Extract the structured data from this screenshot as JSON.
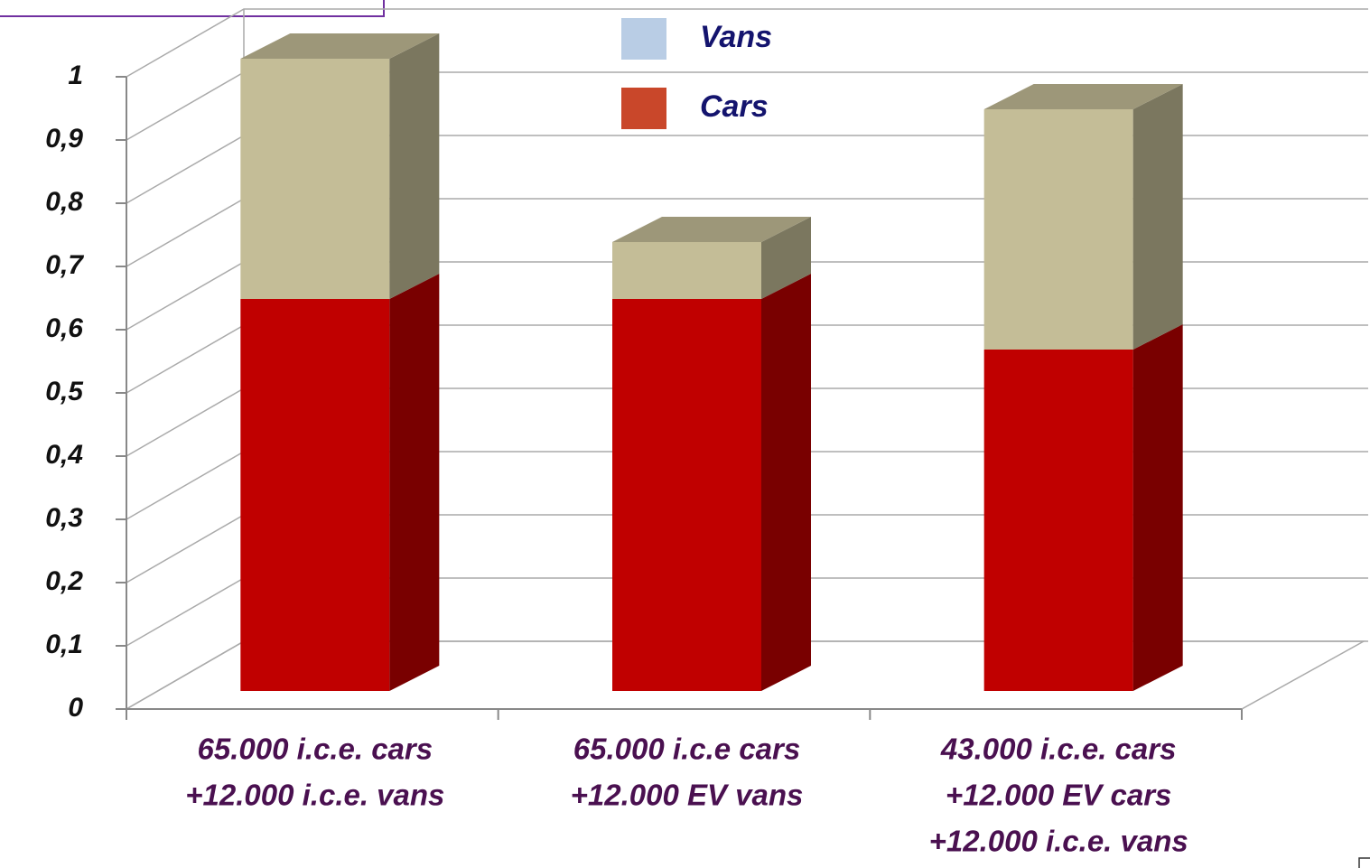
{
  "chart_data": {
    "type": "bar3d_stacked",
    "categories": [
      [
        "65.000 i.c.e. cars",
        "+12.000 i.c.e. vans"
      ],
      [
        "65.000 i.c.e cars",
        "+12.000 EV vans"
      ],
      [
        "43.000 i.c.e. cars",
        "+12.000 EV cars",
        "+12.000 i.c.e. vans"
      ]
    ],
    "series": [
      {
        "name": "Cars",
        "color": "#c00000",
        "legend_color": "#c9472a",
        "values": [
          0.62,
          0.62,
          0.54
        ]
      },
      {
        "name": "Vans",
        "color": "#c4bd97",
        "legend_color": "#b9cde5",
        "values": [
          0.38,
          0.09,
          0.38
        ]
      }
    ],
    "ylim": [
      0,
      1
    ],
    "yticks": [
      0,
      {
        "value": 0.1,
        "label": "0,1"
      },
      {
        "value": 0.2,
        "label": "0,2"
      },
      {
        "value": 0.3,
        "label": "0,3"
      },
      {
        "value": 0.4,
        "label": "0,4"
      },
      {
        "value": 0.5,
        "label": "0,5"
      },
      {
        "value": 0.6,
        "label": "0,6"
      },
      {
        "value": 0.7,
        "label": "0,7"
      },
      {
        "value": 0.8,
        "label": "0,8"
      },
      {
        "value": 0.9,
        "label": "0,9"
      },
      1
    ],
    "grid": true
  }
}
